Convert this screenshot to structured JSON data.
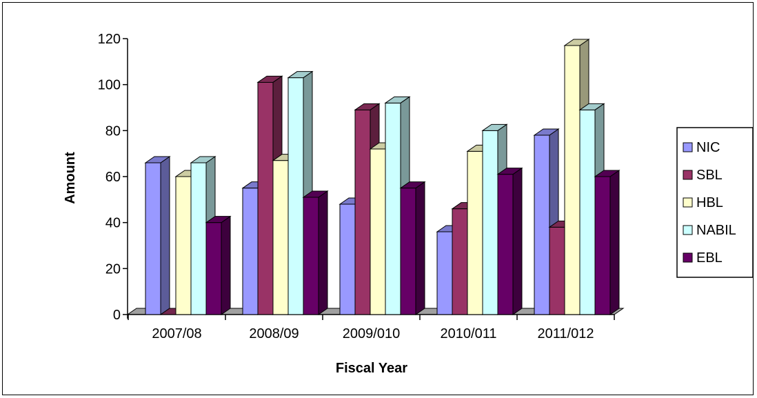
{
  "chart_data": {
    "type": "bar",
    "title": "",
    "xlabel": "Fiscal Year",
    "ylabel": "Amount",
    "ylim": [
      0,
      120
    ],
    "yticks": [
      0,
      20,
      40,
      60,
      80,
      100,
      120
    ],
    "grid": false,
    "style": "3d-clustered-column",
    "legend_position": "right",
    "categories": [
      "2007/08",
      "2008/09",
      "2009/010",
      "2010/011",
      "2011/012"
    ],
    "series": [
      {
        "name": "NIC",
        "color": "#9999ff",
        "values": [
          66,
          55,
          48,
          36,
          78
        ]
      },
      {
        "name": "SBL",
        "color": "#993366",
        "values": [
          0,
          101,
          89,
          46,
          38
        ]
      },
      {
        "name": "HBL",
        "color": "#ffffcc",
        "values": [
          60,
          67,
          72,
          71,
          117
        ]
      },
      {
        "name": "NABIL",
        "color": "#ccffff",
        "values": [
          66,
          103,
          92,
          80,
          89
        ]
      },
      {
        "name": "EBL",
        "color": "#660066",
        "values": [
          40,
          51,
          55,
          61,
          60
        ]
      }
    ]
  }
}
